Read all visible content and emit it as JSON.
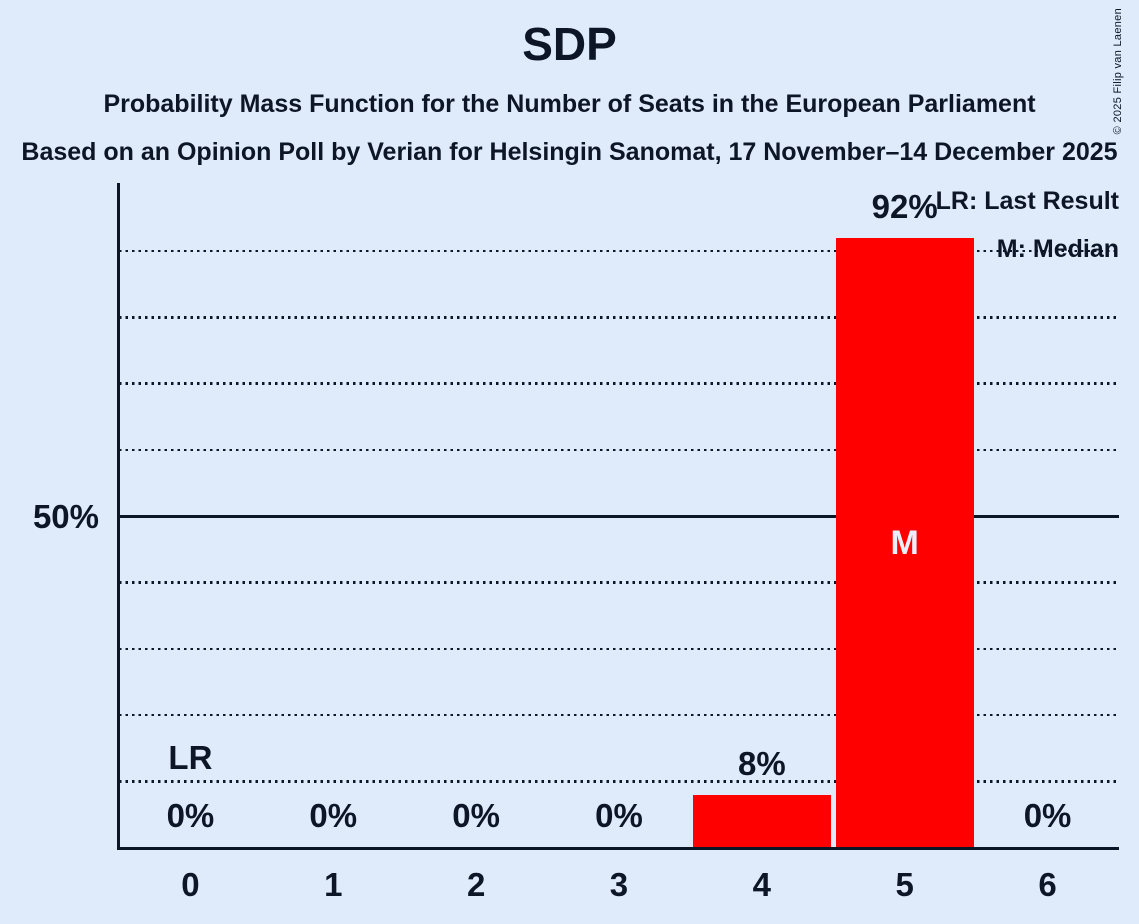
{
  "header": {
    "title": "SDP",
    "subtitle": "Probability Mass Function for the Number of Seats in the European Parliament",
    "source_line": "Based on an Opinion Poll by Verian for Helsingin Sanomat, 17 November–14 December 2025",
    "copyright": "© 2025 Filip van Laenen"
  },
  "legend": {
    "lr_label": "LR: Last Result",
    "m_label": "M: Median"
  },
  "y_axis": {
    "label": "50%"
  },
  "chart_data": {
    "type": "bar",
    "title": "SDP",
    "categories": [
      "0",
      "1",
      "2",
      "3",
      "4",
      "5",
      "6"
    ],
    "values": [
      0,
      0,
      0,
      0,
      8,
      92,
      0
    ],
    "value_labels": [
      "0%",
      "0%",
      "0%",
      "0%",
      "8%",
      "92%",
      "0%"
    ],
    "ylim": [
      0,
      100
    ],
    "gridlines_pct": [
      10,
      20,
      30,
      40,
      50,
      60,
      70,
      80,
      90
    ],
    "solid_gridline_pct": 50,
    "grid": "dotted",
    "legend_position": "top-right",
    "bar_color": "#ff0000",
    "background_color": "#dfeafb",
    "ink_color": "#0d1626",
    "last_result_seat": "0",
    "median_seat": "5",
    "lr_marker": "LR",
    "median_marker": "M"
  }
}
